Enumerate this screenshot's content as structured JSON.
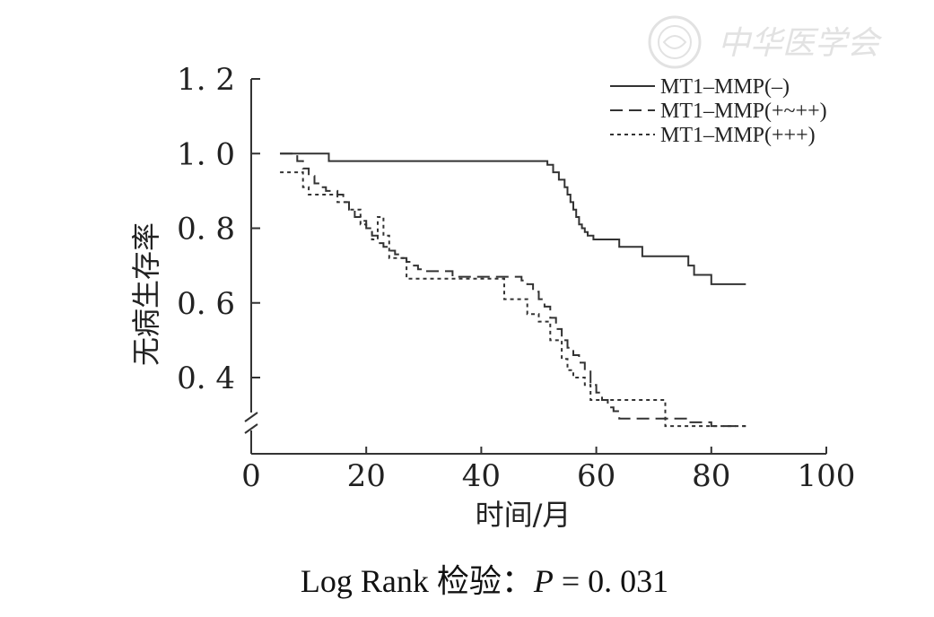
{
  "watermark": {
    "text": "中华医学会"
  },
  "footnote": {
    "prefix": "Log Rank 检验：",
    "p_symbol": "P",
    "p_rest": " = 0. 031"
  },
  "chart_data": {
    "type": "line",
    "step": true,
    "xlabel": "时间/月",
    "ylabel": "无病生存率",
    "xlim": [
      0,
      100
    ],
    "ylim": [
      0.2,
      1.2
    ],
    "y_axis_break": true,
    "x_ticks": [
      0,
      20,
      40,
      60,
      80,
      100
    ],
    "x_tick_labels": [
      "0",
      "20",
      "40",
      "60",
      "80",
      "100"
    ],
    "y_ticks": [
      0.4,
      0.6,
      0.8,
      1.0,
      1.2
    ],
    "y_tick_labels": [
      "0. 4",
      "0. 6",
      "0. 8",
      "1. 0",
      "1. 2"
    ],
    "grid": false,
    "legend_position": "top-right",
    "series": [
      {
        "name": "MT1–MMP(–)",
        "dash": "solid",
        "x": [
          5,
          13.5,
          51.5,
          52.5,
          53.5,
          54.5,
          55,
          55.5,
          56,
          56.5,
          57,
          57.5,
          58,
          58.5,
          59,
          59.5,
          60.5,
          64,
          68,
          76,
          77,
          80,
          86
        ],
        "y": [
          1.0,
          0.98,
          0.97,
          0.95,
          0.93,
          0.91,
          0.89,
          0.87,
          0.85,
          0.83,
          0.81,
          0.8,
          0.79,
          0.78,
          0.78,
          0.77,
          0.77,
          0.75,
          0.725,
          0.7,
          0.675,
          0.65,
          0.65
        ]
      },
      {
        "name": "MT1–MMP(+~++)",
        "dash": "dashed",
        "x": [
          5,
          8,
          9,
          10,
          11,
          12,
          13,
          14,
          15,
          16,
          17,
          18,
          19,
          20,
          21,
          22,
          23,
          24,
          25,
          26,
          27,
          28,
          29,
          30,
          32,
          35,
          40,
          45,
          47,
          48,
          49,
          50,
          51,
          52,
          53,
          54,
          55,
          56,
          57,
          58,
          59,
          60,
          61,
          62,
          63,
          64,
          72,
          76,
          80,
          86
        ],
        "y": [
          1.0,
          0.98,
          0.96,
          0.94,
          0.92,
          0.91,
          0.9,
          0.9,
          0.89,
          0.87,
          0.85,
          0.83,
          0.82,
          0.8,
          0.78,
          0.76,
          0.75,
          0.74,
          0.73,
          0.72,
          0.71,
          0.7,
          0.69,
          0.685,
          0.685,
          0.67,
          0.67,
          0.67,
          0.66,
          0.65,
          0.63,
          0.61,
          0.59,
          0.56,
          0.53,
          0.5,
          0.48,
          0.46,
          0.44,
          0.42,
          0.38,
          0.36,
          0.34,
          0.32,
          0.31,
          0.29,
          0.29,
          0.28,
          0.27,
          0.27
        ]
      },
      {
        "name": "MT1–MMP(+++)",
        "dash": "dotted",
        "x": [
          5,
          9,
          10,
          15,
          17,
          19,
          20,
          21,
          22,
          23,
          24,
          27,
          40,
          44,
          48,
          50,
          52,
          54,
          55,
          56,
          57,
          58,
          59,
          60,
          72,
          73,
          80,
          86
        ],
        "y": [
          0.95,
          0.91,
          0.89,
          0.87,
          0.85,
          0.81,
          0.8,
          0.77,
          0.83,
          0.78,
          0.72,
          0.665,
          0.665,
          0.61,
          0.57,
          0.55,
          0.5,
          0.45,
          0.42,
          0.4,
          0.4,
          0.38,
          0.34,
          0.34,
          0.27,
          0.27,
          0.27,
          0.27
        ]
      }
    ]
  }
}
